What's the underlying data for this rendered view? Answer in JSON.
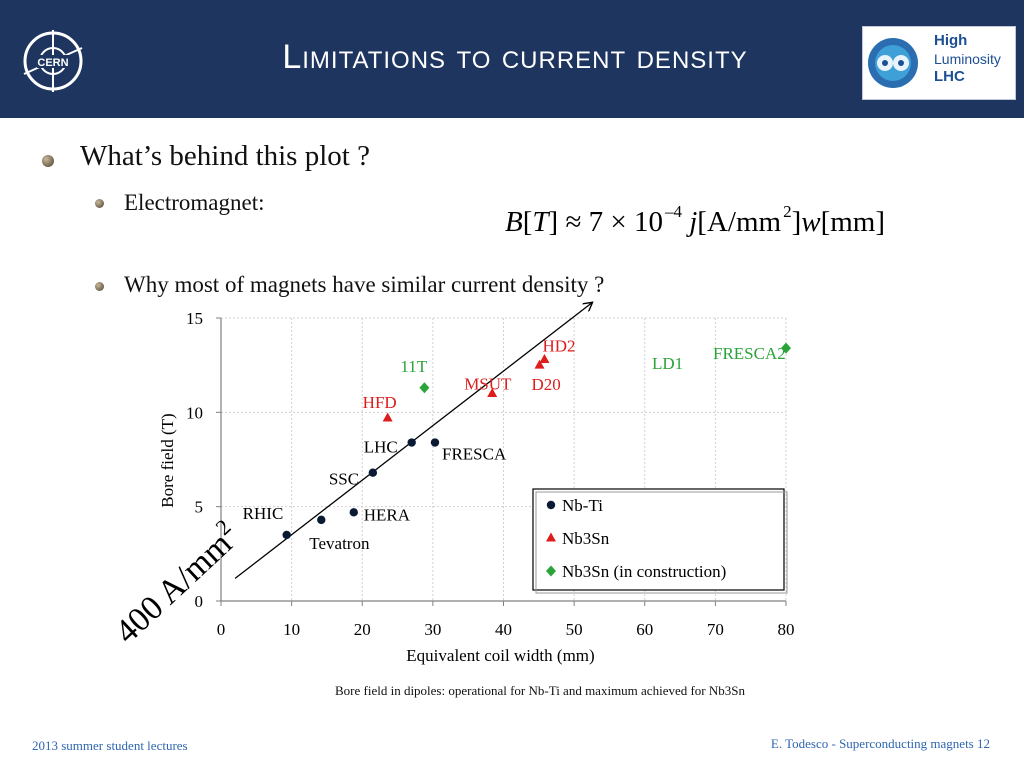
{
  "header": {
    "title": "Limitations to current density",
    "cern_logo_text": "CERN",
    "hl_logo": {
      "line1": "High",
      "line2": "Luminosity",
      "line3": "LHC"
    }
  },
  "bullets": {
    "q1": "What’s behind this plot ?",
    "q2": "Electromagnet:",
    "q3": "Why most of magnets have similar current density ?"
  },
  "formula": {
    "b": "B",
    "t": "T",
    "rel": "≈ 7 × 10",
    "exp": "–4",
    "j": "j",
    "unit_a": "[A/mm",
    "sq": "2",
    "unit_close": "]",
    "w": "w",
    "unit_mm": "[mm]"
  },
  "chart_data": {
    "type": "scatter",
    "xlabel": "Equivalent coil width (mm)",
    "ylabel": "Bore field (T)",
    "xlim": [
      0,
      80
    ],
    "ylim": [
      0,
      15
    ],
    "xticks": [
      "0",
      "10",
      "20",
      "30",
      "40",
      "50",
      "60",
      "70",
      "80"
    ],
    "yticks": [
      "0",
      "5",
      "10",
      "15"
    ],
    "grid": true,
    "legend_position": "bottom-right",
    "series": [
      {
        "name": "Nb-Ti",
        "color": "#0b1a33",
        "marker": "circle",
        "points": [
          {
            "label": "RHIC",
            "x": 9.3,
            "y": 3.5
          },
          {
            "label": "Tevatron",
            "x": 14.2,
            "y": 4.3
          },
          {
            "label": "HERA",
            "x": 18.8,
            "y": 4.7
          },
          {
            "label": "SSC",
            "x": 21.5,
            "y": 6.8
          },
          {
            "label": "LHC",
            "x": 27.0,
            "y": 8.4
          },
          {
            "label": "FRESCA",
            "x": 30.3,
            "y": 8.4
          }
        ]
      },
      {
        "name": "Nb3Sn",
        "color": "#dd1c1c",
        "marker": "triangle",
        "points": [
          {
            "label": "HFD",
            "x": 23.6,
            "y": 9.7
          },
          {
            "label": "MSUT",
            "x": 38.4,
            "y": 11.0
          },
          {
            "label": "D20",
            "x": 45.1,
            "y": 12.5
          },
          {
            "label": "HD2",
            "x": 45.8,
            "y": 12.8
          }
        ]
      },
      {
        "name": "Nb3Sn (in construction)",
        "color": "#2aa338",
        "marker": "diamond",
        "points": [
          {
            "label": "11T",
            "x": 28.8,
            "y": 11.3
          },
          {
            "label": "LD1",
            "x": 63.0,
            "y": 12.3
          },
          {
            "label": "FRESCA2",
            "x": 80.0,
            "y": 13.4
          }
        ]
      }
    ],
    "trend_line": {
      "label": "400 A/mm",
      "label_sup": "2",
      "from": [
        2,
        1.2
      ],
      "to": [
        52.5,
        15.8
      ],
      "arrow": true
    },
    "caption": "Bore field in dipoles: operational for Nb-Ti and maximum achieved for Nb3Sn"
  },
  "footer": {
    "left": "2013 summer student lectures",
    "right": "E. Todesco - Superconducting magnets 12"
  }
}
